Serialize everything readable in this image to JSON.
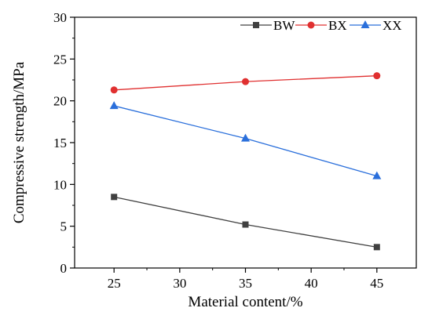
{
  "chart_data": {
    "type": "line",
    "x": [
      25,
      35,
      45
    ],
    "xlabel": "Material content/%",
    "ylabel": "Compressive strength/MPa",
    "xlim": [
      22,
      48
    ],
    "ylim": [
      0,
      30
    ],
    "x_ticks": [
      "25",
      "30",
      "35",
      "40",
      "45"
    ],
    "y_ticks": [
      "0",
      "5",
      "10",
      "15",
      "20",
      "25",
      "30"
    ],
    "grid": false,
    "legend_position": "top-right",
    "series": [
      {
        "name": "BW",
        "values": [
          8.5,
          5.2,
          2.5
        ],
        "color": "#404040",
        "marker": "square"
      },
      {
        "name": "BX",
        "values": [
          21.3,
          22.3,
          23.0
        ],
        "color": "#e03030",
        "marker": "circle"
      },
      {
        "name": "XX",
        "values": [
          19.4,
          15.5,
          11.0
        ],
        "color": "#2a6fdb",
        "marker": "triangle"
      }
    ]
  }
}
